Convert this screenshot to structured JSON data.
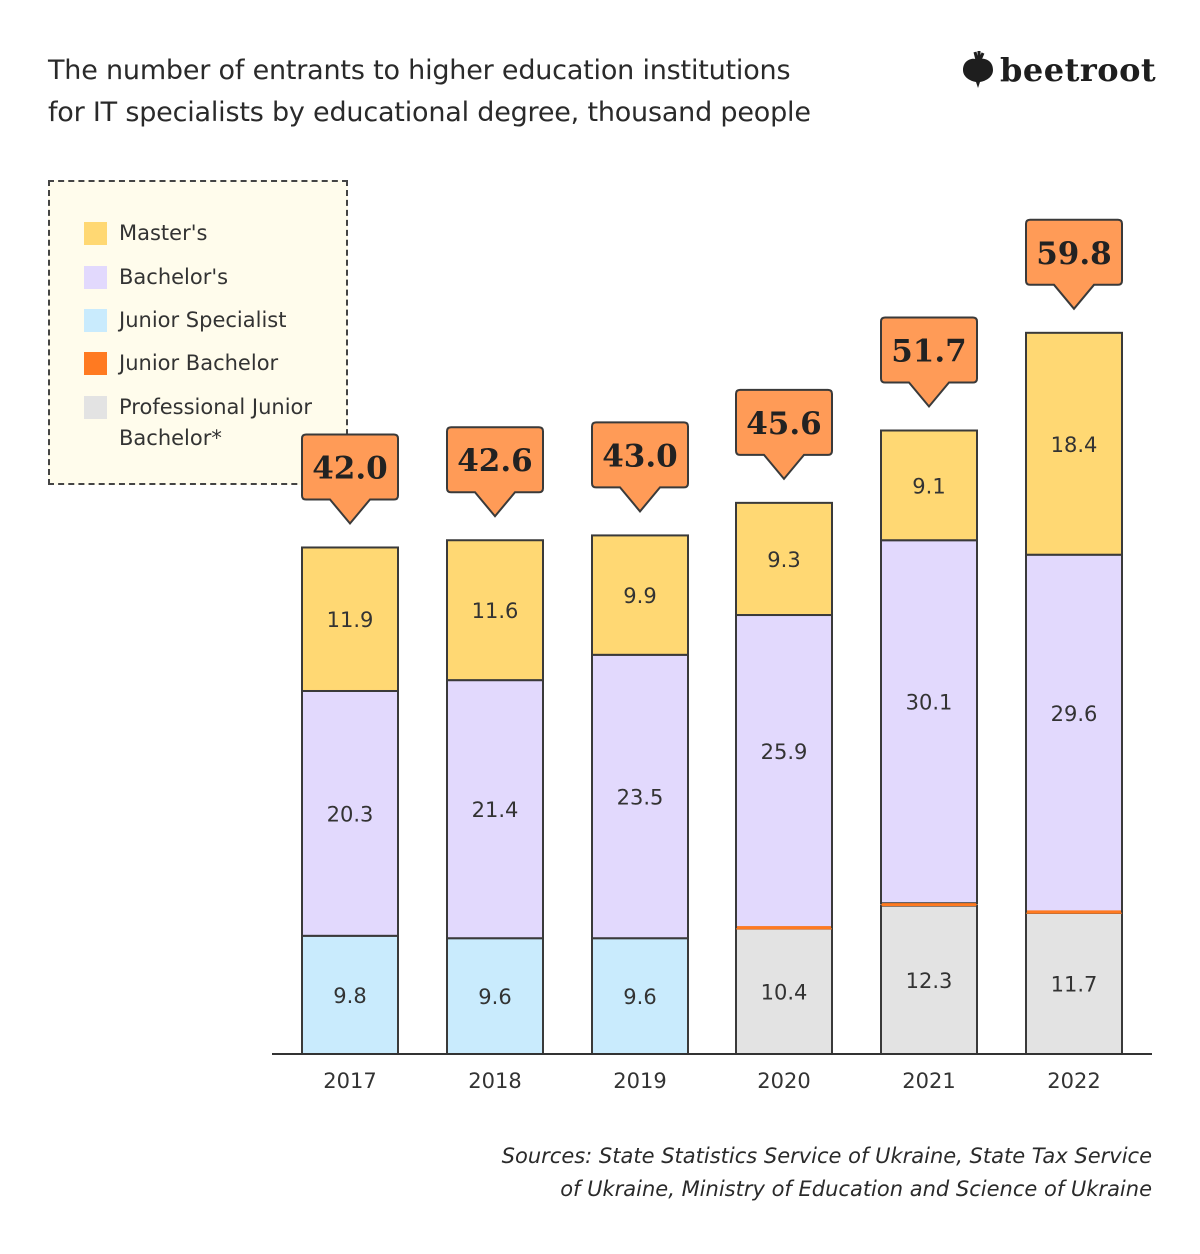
{
  "title_line1": "The number of entrants to higher education institutions",
  "title_line2": "for IT specialists by educational degree, thousand people",
  "logo": "beetroot",
  "sources_line1": "Sources: State Statistics Service of Ukraine, State Tax Service",
  "sources_line2": "of Ukraine, Ministry of Education and Science of Ukraine",
  "legend": [
    {
      "label": "Master's",
      "color": "#ffd873"
    },
    {
      "label": "Bachelor's",
      "color": "#e2d9fd"
    },
    {
      "label": "Junior Specialist",
      "color": "#c9ebfd"
    },
    {
      "label": "Junior Bachelor",
      "color": "#ff7a21"
    },
    {
      "label": "Professional Junior Bachelor*",
      "color": "#e3e3e3"
    }
  ],
  "chart_data": {
    "type": "bar",
    "stacked": true,
    "title": "The number of entrants to higher education institutions for IT specialists by educational degree, thousand people",
    "categories": [
      "2017",
      "2018",
      "2019",
      "2020",
      "2021",
      "2022"
    ],
    "series": [
      {
        "name": "Professional Junior Bachelor*",
        "color": "#e3e3e3",
        "values": [
          null,
          null,
          null,
          10.4,
          12.3,
          11.7
        ]
      },
      {
        "name": "Junior Specialist",
        "color": "#c9ebfd",
        "values": [
          9.8,
          9.6,
          9.6,
          null,
          null,
          null
        ]
      },
      {
        "name": "Junior Bachelor",
        "color": "#ff7a21",
        "values": [
          null,
          null,
          null,
          0.1,
          0.2,
          0.1
        ]
      },
      {
        "name": "Bachelor's",
        "color": "#e2d9fd",
        "values": [
          20.3,
          21.4,
          23.5,
          25.9,
          30.1,
          29.6
        ]
      },
      {
        "name": "Master's",
        "color": "#ffd873",
        "values": [
          11.9,
          11.6,
          9.9,
          9.3,
          9.1,
          18.4
        ]
      }
    ],
    "totals": [
      "42.0",
      "42.6",
      "43.0",
      "45.6",
      "51.7",
      "59.8"
    ],
    "total_callout_color": "#ff9b57",
    "ylim": [
      0,
      60
    ],
    "grid": false,
    "legend_placement": "top-left"
  }
}
